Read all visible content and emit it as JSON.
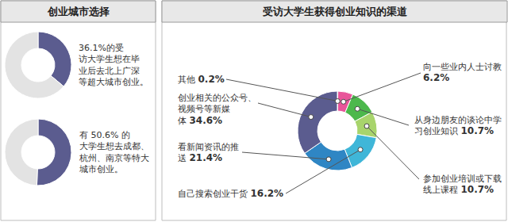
{
  "chart_data": [
    {
      "type": "pie",
      "title": "创业城市选择",
      "values": [
        36.1,
        63.9
      ],
      "colors": [
        "#5b5c8f",
        "#e3e3e3"
      ],
      "annotation": [
        "36.1%的受",
        "访大学生想在毕",
        "业后去北上广深",
        "等超大城市创业。"
      ]
    },
    {
      "type": "pie",
      "values": [
        50.6,
        49.4
      ],
      "colors": [
        "#5b5c8f",
        "#e3e3e3"
      ],
      "annotation": [
        "有 50.6% 的",
        "大学生想去成都、",
        "杭州、南京等特大",
        "城市创业。"
      ]
    },
    {
      "type": "pie",
      "title": "受访大学生获得创业知识的渠道",
      "categories": [
        "其他",
        "向一些业内人士讨教",
        "从身边朋友的谈论中学习创业知识",
        "参加创业培训或下载线上课程",
        "自己搜索创业干货",
        "看新闻资讯的推送",
        "创业相关的公众号、视频号等新媒体"
      ],
      "values": [
        0.2,
        6.2,
        10.7,
        10.7,
        16.2,
        21.4,
        34.6
      ],
      "value_labels": [
        "0.2%",
        "6.2%",
        "10.7%",
        "10.7%",
        "16.2%",
        "21.4%",
        "34.6%"
      ],
      "colors": [
        "#b5b5b5",
        "#e8559a",
        "#4cb84c",
        "#a8d46c",
        "#3fb6d8",
        "#2f86c4",
        "#5b5c8f"
      ]
    }
  ]
}
